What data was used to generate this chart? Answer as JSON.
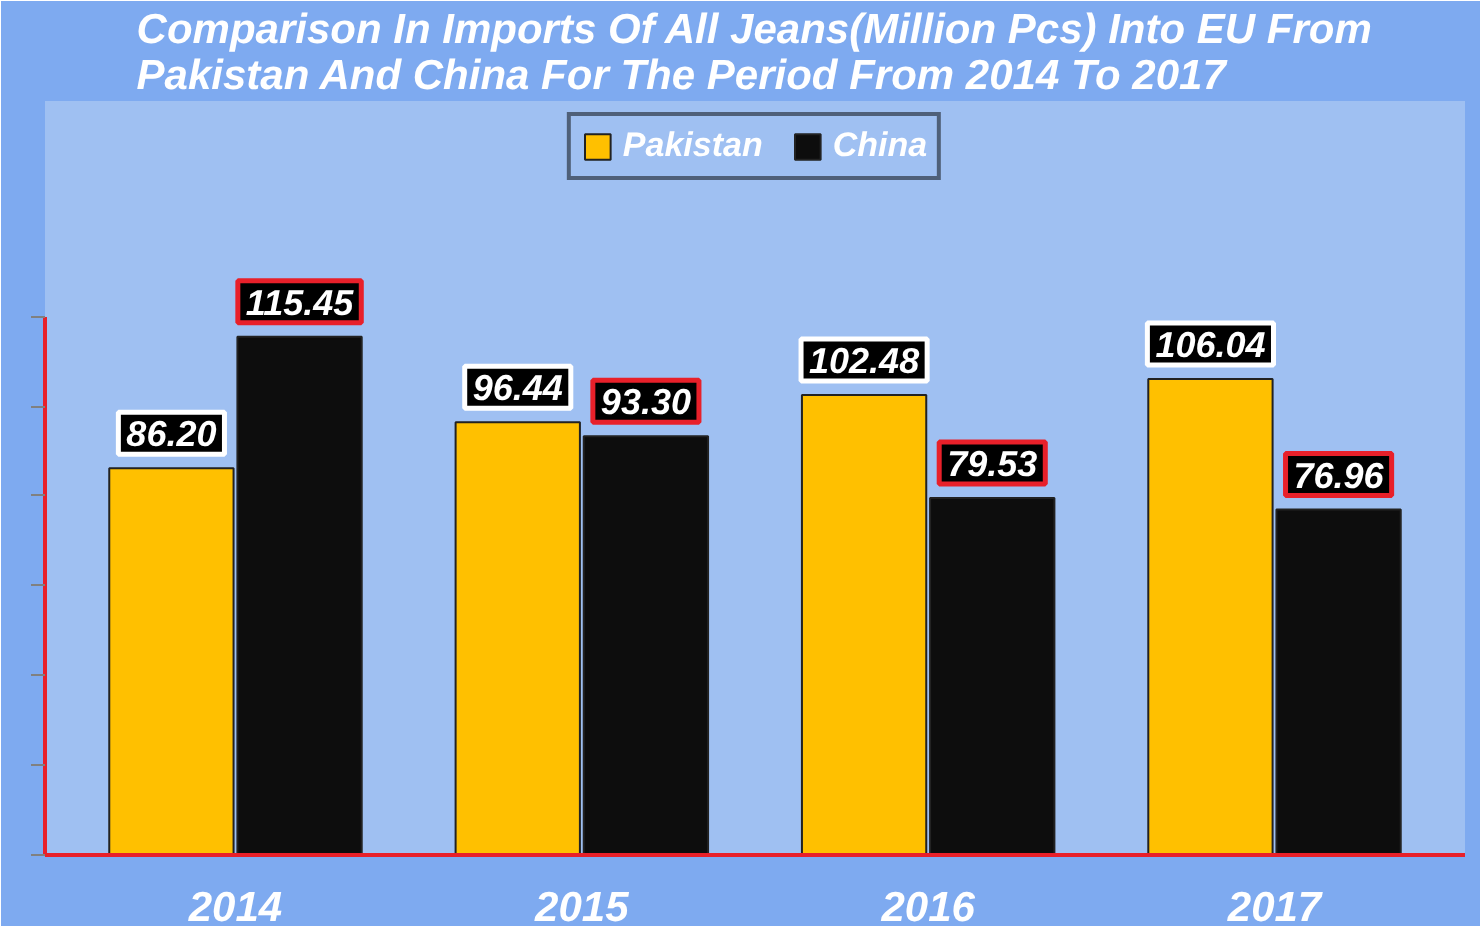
{
  "chart_data": {
    "type": "bar",
    "title": "Comparison In Imports Of All Jeans(Million Pcs) Into EU From Pakistan And China For The Period From 2014 To 2017",
    "categories": [
      "2014",
      "2015",
      "2016",
      "2017"
    ],
    "series": [
      {
        "name": "Pakistan",
        "color": "#ffc000",
        "values": [
          86.2,
          96.44,
          102.48,
          106.04
        ],
        "value_labels": [
          "86.20",
          "96.44",
          "102.48",
          "106.04"
        ]
      },
      {
        "name": "China",
        "color": "#0d0d0d",
        "values": [
          115.45,
          93.3,
          79.53,
          76.96
        ],
        "value_labels": [
          "115.45",
          "93.30",
          "79.53",
          "76.96"
        ]
      }
    ],
    "ylim": [
      0,
      120
    ],
    "yticks": [
      {
        "value": 0,
        "label": null
      },
      {
        "value": 20,
        "label": null
      },
      {
        "value": 40,
        "label": null
      },
      {
        "value": 60,
        "label": null
      },
      {
        "value": 80,
        "label": null
      },
      {
        "value": 100,
        "label": null
      },
      {
        "value": 120,
        "label": null
      }
    ],
    "tick_labels": "x",
    "legend": "top"
  }
}
